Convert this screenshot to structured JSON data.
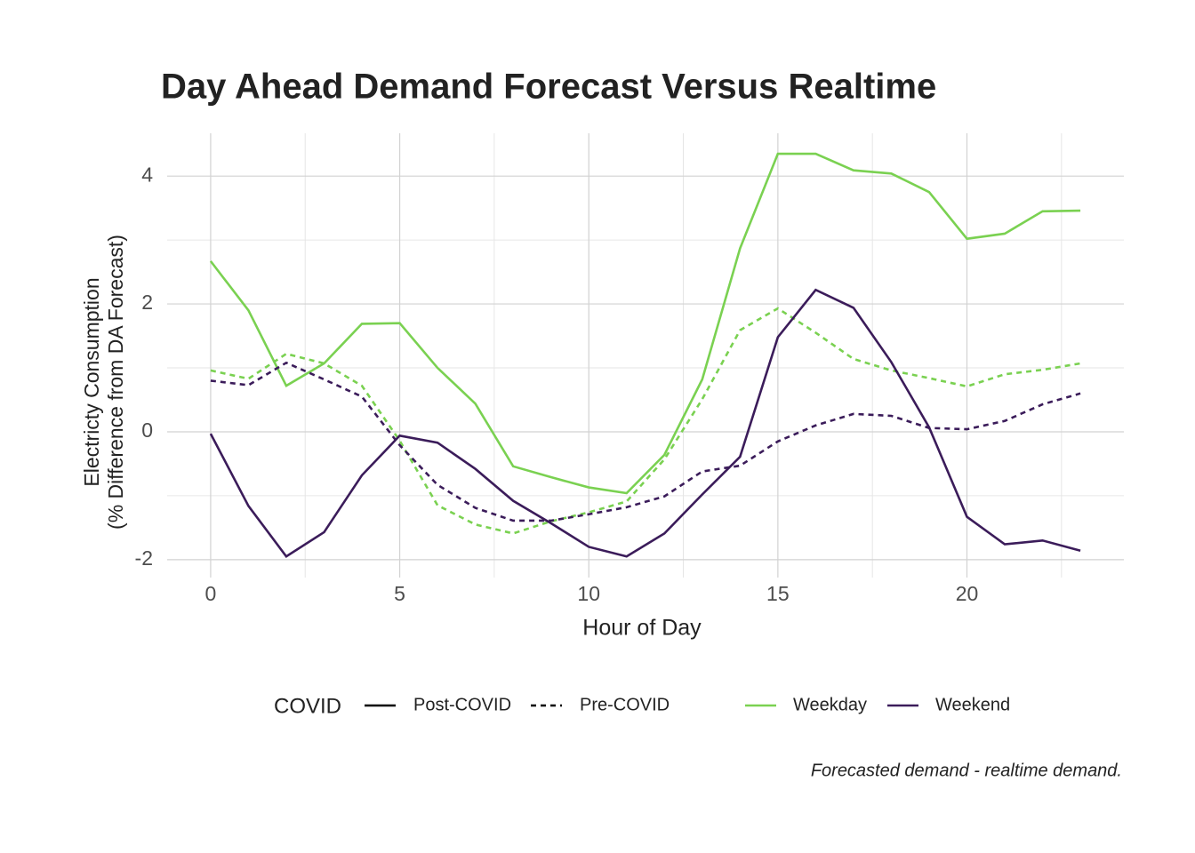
{
  "chart_data": {
    "type": "line",
    "title": "Day Ahead Demand Forecast Versus Realtime",
    "x_label": "Hour of Day",
    "y_label": [
      "Electricty Consumption",
      "(% Difference from DA Forecast)"
    ],
    "caption": "Forecasted demand - realtime demand.",
    "legend_title": "COVID",
    "x": [
      0,
      1,
      2,
      3,
      4,
      5,
      6,
      7,
      8,
      9,
      10,
      11,
      12,
      13,
      14,
      15,
      16,
      17,
      18,
      19,
      20,
      21,
      22,
      23
    ],
    "xlim": [
      -1.15,
      24.15
    ],
    "xticks": [
      0,
      5,
      10,
      15,
      20
    ],
    "x_minor_ticks": [
      2.5,
      7.5,
      12.5,
      17.5,
      22.5
    ],
    "ylim": [
      -2.28,
      4.67
    ],
    "yticks": [
      -2,
      0,
      2,
      4
    ],
    "y_minor_ticks": [
      -1,
      1,
      3
    ],
    "grid": true,
    "series": [
      {
        "name": "Weekday",
        "linetype": "Post-COVID",
        "dash": "solid",
        "color": "#7ad151",
        "values": [
          2.67,
          1.9,
          0.72,
          1.07,
          1.69,
          1.7,
          1.0,
          0.44,
          -0.54,
          -0.71,
          -0.87,
          -0.96,
          -0.36,
          0.82,
          2.87,
          4.35,
          4.35,
          4.09,
          4.04,
          3.75,
          3.02,
          3.1,
          3.45,
          3.46
        ]
      },
      {
        "name": "Weekday",
        "linetype": "Pre-COVID",
        "dash": "dashed",
        "color": "#7ad151",
        "values": [
          0.96,
          0.83,
          1.22,
          1.07,
          0.72,
          -0.14,
          -1.15,
          -1.45,
          -1.59,
          -1.4,
          -1.26,
          -1.09,
          -0.43,
          0.51,
          1.59,
          1.93,
          1.55,
          1.14,
          0.96,
          0.84,
          0.71,
          0.9,
          0.97,
          1.07
        ]
      },
      {
        "name": "Weekend",
        "linetype": "Post-COVID",
        "dash": "solid",
        "color": "#3b1c5a",
        "values": [
          -0.03,
          -1.16,
          -1.95,
          -1.57,
          -0.68,
          -0.06,
          -0.17,
          -0.58,
          -1.08,
          -1.43,
          -1.8,
          -1.95,
          -1.59,
          -0.98,
          -0.39,
          1.48,
          2.22,
          1.94,
          1.09,
          0.07,
          -1.33,
          -1.76,
          -1.7,
          -1.86
        ]
      },
      {
        "name": "Weekend",
        "linetype": "Pre-COVID",
        "dash": "dashed",
        "color": "#3b1c5a",
        "values": [
          0.8,
          0.73,
          1.08,
          0.82,
          0.55,
          -0.21,
          -0.83,
          -1.19,
          -1.39,
          -1.39,
          -1.29,
          -1.18,
          -1.01,
          -0.62,
          -0.53,
          -0.15,
          0.1,
          0.28,
          0.25,
          0.06,
          0.04,
          0.17,
          0.43,
          0.6
        ]
      }
    ]
  }
}
